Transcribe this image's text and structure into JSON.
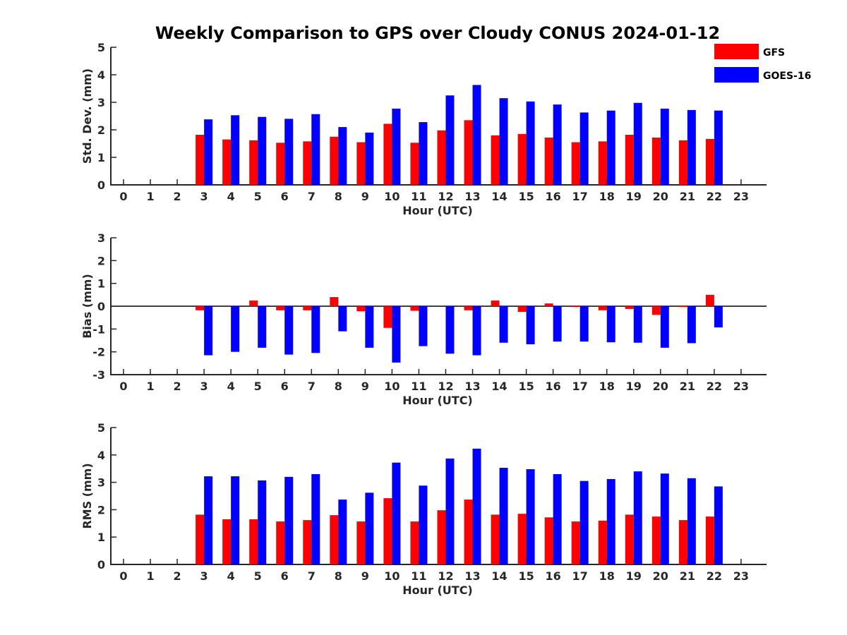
{
  "title": "Weekly Comparison to GPS over Cloudy CONUS 2024-01-12",
  "colors": {
    "GFS": "#ff0000",
    "GOES-16": "#0000ff"
  },
  "legend": {
    "placement": "top-right",
    "items": [
      "GFS",
      "GOES-16"
    ]
  },
  "chart_data": [
    {
      "type": "bar",
      "xlabel": "Hour (UTC)",
      "ylabel": "Std. Dev. (mm)",
      "ylim": [
        0,
        5
      ],
      "yticks": [
        0,
        1,
        2,
        3,
        4,
        5
      ],
      "categories": [
        "0",
        "1",
        "2",
        "3",
        "4",
        "5",
        "6",
        "7",
        "8",
        "9",
        "10",
        "11",
        "12",
        "13",
        "14",
        "15",
        "16",
        "17",
        "18",
        "19",
        "20",
        "21",
        "22",
        "23"
      ],
      "series": [
        {
          "name": "GFS",
          "values": [
            null,
            null,
            null,
            1.82,
            1.65,
            1.62,
            1.53,
            1.58,
            1.75,
            1.55,
            2.22,
            1.53,
            1.98,
            2.35,
            1.8,
            1.85,
            1.72,
            1.55,
            1.58,
            1.82,
            1.72,
            1.62,
            1.67,
            null
          ]
        },
        {
          "name": "GOES-16",
          "values": [
            null,
            null,
            null,
            2.38,
            2.53,
            2.47,
            2.4,
            2.57,
            2.1,
            1.9,
            2.77,
            2.28,
            3.25,
            3.63,
            3.15,
            3.03,
            2.92,
            2.63,
            2.7,
            2.98,
            2.77,
            2.72,
            2.7,
            null
          ]
        }
      ]
    },
    {
      "type": "bar",
      "xlabel": "Hour (UTC)",
      "ylabel": "Bias (mm)",
      "ylim": [
        -3,
        3
      ],
      "yticks": [
        -3,
        -2,
        -1,
        0,
        1,
        2,
        3
      ],
      "categories": [
        "0",
        "1",
        "2",
        "3",
        "4",
        "5",
        "6",
        "7",
        "8",
        "9",
        "10",
        "11",
        "12",
        "13",
        "14",
        "15",
        "16",
        "17",
        "18",
        "19",
        "20",
        "21",
        "22",
        "23"
      ],
      "series": [
        {
          "name": "GFS",
          "values": [
            null,
            null,
            null,
            -0.18,
            0.0,
            0.25,
            -0.18,
            -0.18,
            0.4,
            -0.22,
            -0.95,
            -0.2,
            0.0,
            -0.18,
            0.25,
            -0.25,
            0.12,
            -0.03,
            -0.18,
            -0.12,
            -0.38,
            -0.03,
            0.5,
            null
          ]
        },
        {
          "name": "GOES-16",
          "values": [
            null,
            null,
            null,
            -2.15,
            -2.0,
            -1.82,
            -2.12,
            -2.05,
            -1.1,
            -1.82,
            -2.47,
            -1.75,
            -2.08,
            -2.15,
            -1.6,
            -1.67,
            -1.55,
            -1.55,
            -1.58,
            -1.6,
            -1.82,
            -1.62,
            -0.93,
            null
          ]
        }
      ]
    },
    {
      "type": "bar",
      "xlabel": "Hour (UTC)",
      "ylabel": "RMS (mm)",
      "ylim": [
        0,
        5
      ],
      "yticks": [
        0,
        1,
        2,
        3,
        4,
        5
      ],
      "categories": [
        "0",
        "1",
        "2",
        "3",
        "4",
        "5",
        "6",
        "7",
        "8",
        "9",
        "10",
        "11",
        "12",
        "13",
        "14",
        "15",
        "16",
        "17",
        "18",
        "19",
        "20",
        "21",
        "22",
        "23"
      ],
      "series": [
        {
          "name": "GFS",
          "values": [
            null,
            null,
            null,
            1.82,
            1.65,
            1.65,
            1.57,
            1.62,
            1.8,
            1.57,
            2.42,
            1.57,
            1.98,
            2.37,
            1.82,
            1.85,
            1.72,
            1.57,
            1.6,
            1.82,
            1.75,
            1.62,
            1.75,
            null
          ]
        },
        {
          "name": "GOES-16",
          "values": [
            null,
            null,
            null,
            3.22,
            3.22,
            3.07,
            3.2,
            3.3,
            2.37,
            2.62,
            3.72,
            2.88,
            3.87,
            4.23,
            3.53,
            3.48,
            3.3,
            3.05,
            3.12,
            3.4,
            3.32,
            3.15,
            2.85,
            null
          ]
        }
      ]
    }
  ]
}
